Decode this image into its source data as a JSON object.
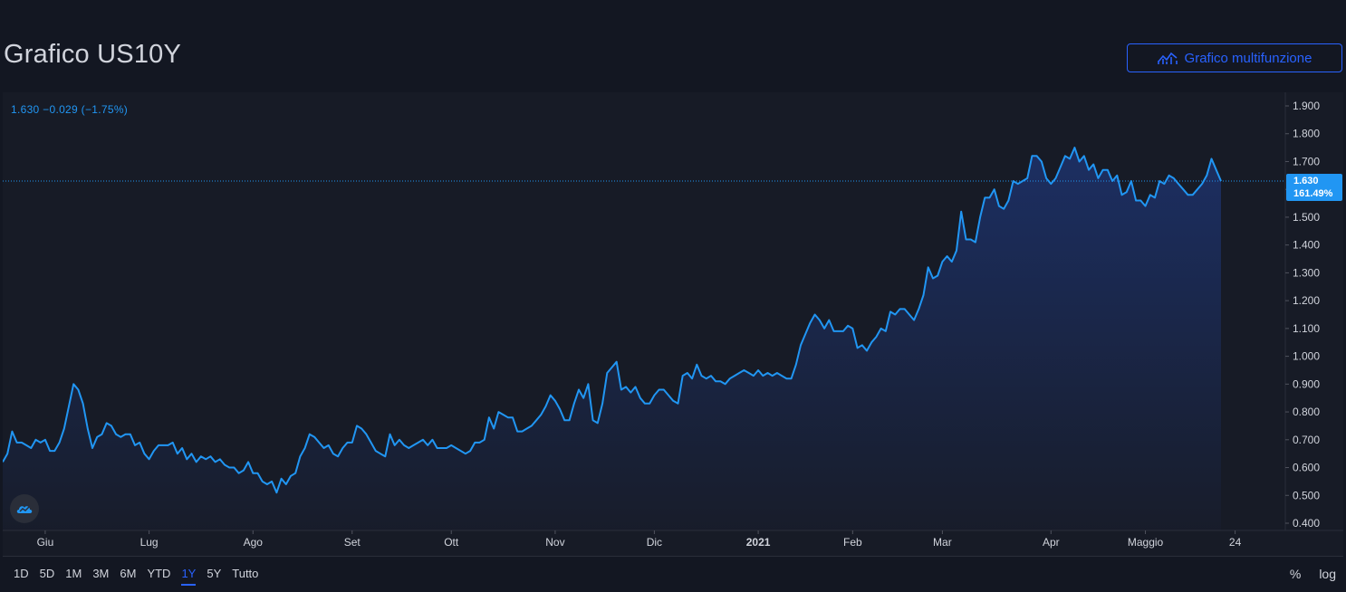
{
  "header": {
    "title": "Grafico US10Y",
    "multi_button_label": "Grafico multifunzione"
  },
  "quote": {
    "last": "1.630",
    "change": "−0.029",
    "change_pct": "(−1.75%)"
  },
  "price_tag": {
    "value": "1.630",
    "percent": "161.49%"
  },
  "colors": {
    "background": "#131722",
    "pane": "#171b26",
    "line": "#2196f3",
    "accent": "#2962ff",
    "text": "#d1d4dc",
    "axis_text": "#d1d4dc"
  },
  "icons": {
    "multi_button": "multi-chart-icon",
    "logo": "tradingview-cloud-icon"
  },
  "bottom_bar": {
    "ranges": [
      "1D",
      "5D",
      "1M",
      "3M",
      "6M",
      "YTD",
      "1Y",
      "5Y",
      "Tutto"
    ],
    "active_range": "1Y",
    "percent_toggle": "%",
    "log_toggle": "log"
  },
  "chart_data": {
    "type": "area",
    "title": "",
    "xlabel": "",
    "ylabel": "",
    "ylim": [
      0.4,
      1.9
    ],
    "yticks": [
      "1.900",
      "1.800",
      "1.700",
      "1.600",
      "1.500",
      "1.400",
      "1.300",
      "1.200",
      "1.100",
      "1.000",
      "0.900",
      "0.800",
      "0.700",
      "0.600",
      "0.500",
      "0.400"
    ],
    "xticks": [
      "Giu",
      "Lug",
      "Ago",
      "Set",
      "Ott",
      "Nov",
      "Dic",
      "2021",
      "Feb",
      "Mar",
      "Apr",
      "Maggio",
      "24"
    ],
    "xtick_index": [
      9,
      31,
      53,
      74,
      95,
      117,
      138,
      160,
      180,
      199,
      222,
      242,
      261
    ],
    "last_value": 1.63,
    "series": [
      {
        "values": [
          0.62,
          0.65,
          0.73,
          0.69,
          0.69,
          0.68,
          0.67,
          0.7,
          0.69,
          0.7,
          0.66,
          0.66,
          0.69,
          0.74,
          0.82,
          0.9,
          0.88,
          0.83,
          0.74,
          0.67,
          0.71,
          0.72,
          0.76,
          0.75,
          0.72,
          0.71,
          0.72,
          0.72,
          0.68,
          0.69,
          0.65,
          0.63,
          0.66,
          0.68,
          0.68,
          0.68,
          0.69,
          0.65,
          0.67,
          0.63,
          0.65,
          0.62,
          0.64,
          0.63,
          0.64,
          0.62,
          0.63,
          0.61,
          0.6,
          0.6,
          0.58,
          0.59,
          0.62,
          0.58,
          0.58,
          0.55,
          0.54,
          0.55,
          0.51,
          0.56,
          0.54,
          0.57,
          0.58,
          0.64,
          0.67,
          0.72,
          0.71,
          0.69,
          0.67,
          0.68,
          0.65,
          0.64,
          0.67,
          0.69,
          0.69,
          0.75,
          0.74,
          0.72,
          0.69,
          0.66,
          0.65,
          0.64,
          0.72,
          0.68,
          0.7,
          0.68,
          0.67,
          0.68,
          0.69,
          0.7,
          0.68,
          0.7,
          0.67,
          0.67,
          0.67,
          0.68,
          0.67,
          0.66,
          0.65,
          0.66,
          0.69,
          0.69,
          0.7,
          0.78,
          0.74,
          0.8,
          0.79,
          0.78,
          0.78,
          0.73,
          0.73,
          0.74,
          0.75,
          0.77,
          0.79,
          0.82,
          0.86,
          0.84,
          0.81,
          0.77,
          0.77,
          0.83,
          0.88,
          0.85,
          0.9,
          0.77,
          0.76,
          0.83,
          0.94,
          0.96,
          0.98,
          0.88,
          0.89,
          0.87,
          0.89,
          0.85,
          0.83,
          0.83,
          0.86,
          0.88,
          0.88,
          0.86,
          0.84,
          0.83,
          0.93,
          0.94,
          0.92,
          0.97,
          0.93,
          0.92,
          0.93,
          0.91,
          0.91,
          0.9,
          0.92,
          0.93,
          0.94,
          0.95,
          0.94,
          0.93,
          0.95,
          0.93,
          0.94,
          0.93,
          0.94,
          0.93,
          0.92,
          0.92,
          0.97,
          1.04,
          1.08,
          1.12,
          1.15,
          1.13,
          1.1,
          1.13,
          1.09,
          1.09,
          1.09,
          1.11,
          1.1,
          1.03,
          1.04,
          1.02,
          1.05,
          1.07,
          1.1,
          1.09,
          1.16,
          1.15,
          1.17,
          1.17,
          1.15,
          1.13,
          1.17,
          1.22,
          1.32,
          1.28,
          1.29,
          1.34,
          1.36,
          1.34,
          1.38,
          1.52,
          1.42,
          1.42,
          1.41,
          1.5,
          1.57,
          1.57,
          1.6,
          1.54,
          1.53,
          1.56,
          1.63,
          1.62,
          1.63,
          1.64,
          1.72,
          1.72,
          1.7,
          1.64,
          1.62,
          1.64,
          1.68,
          1.72,
          1.71,
          1.75,
          1.7,
          1.72,
          1.67,
          1.69,
          1.64,
          1.67,
          1.67,
          1.63,
          1.65,
          1.58,
          1.59,
          1.63,
          1.56,
          1.56,
          1.54,
          1.58,
          1.57,
          1.63,
          1.62,
          1.65,
          1.64,
          1.62,
          1.6,
          1.58,
          1.58,
          1.6,
          1.62,
          1.65,
          1.71,
          1.67,
          1.63
        ]
      }
    ]
  }
}
